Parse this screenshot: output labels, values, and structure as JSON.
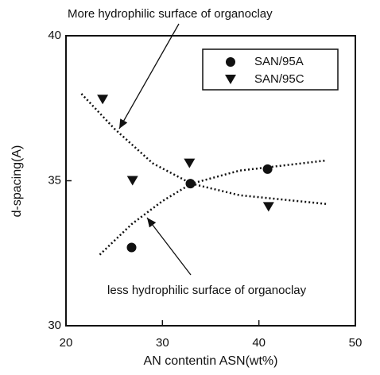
{
  "chart_data": {
    "type": "scatter",
    "xlabel": "AN contentin ASN(wt%)",
    "ylabel": "d-spacing(A)",
    "xlim": [
      20,
      50
    ],
    "xticks": [
      20,
      30,
      40,
      50
    ],
    "ylim": [
      30,
      40
    ],
    "yticks": [
      30,
      35,
      40
    ],
    "legend": "upper right",
    "series": [
      {
        "name": "SAN/95A",
        "marker": "circle",
        "color": "#111111",
        "x": [
          26.8,
          32.9,
          40.9
        ],
        "values": [
          32.7,
          34.9,
          35.4
        ]
      },
      {
        "name": "SAN/95C",
        "marker": "triangle-down",
        "color": "#111111",
        "x": [
          23.8,
          26.9,
          32.8,
          41.0
        ],
        "values": [
          37.8,
          35.0,
          35.6,
          34.1
        ]
      }
    ],
    "curves": [
      {
        "x": [
          21.6,
          25,
          29,
          33,
          38,
          47
        ],
        "values": [
          38.0,
          36.8,
          35.6,
          34.9,
          34.5,
          34.2
        ]
      },
      {
        "x": [
          23.5,
          26.8,
          30,
          33,
          38,
          47
        ],
        "values": [
          32.45,
          33.5,
          34.3,
          34.9,
          35.35,
          35.7
        ]
      }
    ],
    "annotations": [
      "More hydrophilic surface of organoclay",
      "less hydrophilic surface of organoclay"
    ]
  }
}
